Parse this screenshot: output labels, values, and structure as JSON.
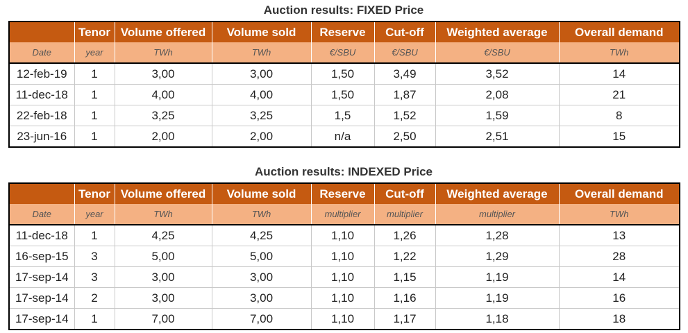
{
  "fixed": {
    "title": "Auction results: FIXED Price",
    "headers": [
      "",
      "Tenor",
      "Volume offered",
      "Volume sold",
      "Reserve",
      "Cut-off",
      "Weighted average",
      "Overall demand"
    ],
    "units": [
      "Date",
      "year",
      "TWh",
      "TWh",
      "€/SBU",
      "€/SBU",
      "€/SBU",
      "TWh"
    ],
    "rows": [
      [
        "12-feb-19",
        "1",
        "3,00",
        "3,00",
        "1,50",
        "3,49",
        "3,52",
        "14"
      ],
      [
        "11-dec-18",
        "1",
        "4,00",
        "4,00",
        "1,50",
        "1,87",
        "2,08",
        "21"
      ],
      [
        "22-feb-18",
        "1",
        "3,25",
        "3,25",
        "1,5",
        "1,52",
        "1,59",
        "8"
      ],
      [
        "23-jun-16",
        "1",
        "2,00",
        "2,00",
        "n/a",
        "2,50",
        "2,51",
        "15"
      ]
    ]
  },
  "indexed": {
    "title": "Auction results: INDEXED Price",
    "headers": [
      "",
      "Tenor",
      "Volume offered",
      "Volume sold",
      "Reserve",
      "Cut-off",
      "Weighted average",
      "Overall demand"
    ],
    "units": [
      "Date",
      "year",
      "TWh",
      "TWh",
      "multiplier",
      "multiplier",
      "multiplier",
      "TWh"
    ],
    "rows": [
      [
        "11-dec-18",
        "1",
        "4,25",
        "4,25",
        "1,10",
        "1,26",
        "1,28",
        "13"
      ],
      [
        "16-sep-15",
        "3",
        "5,00",
        "5,00",
        "1,10",
        "1,22",
        "1,29",
        "28"
      ],
      [
        "17-sep-14",
        "3",
        "3,00",
        "3,00",
        "1,10",
        "1,15",
        "1,19",
        "14"
      ],
      [
        "17-sep-14",
        "2",
        "3,00",
        "3,00",
        "1,10",
        "1,16",
        "1,19",
        "16"
      ],
      [
        "17-sep-14",
        "1",
        "7,00",
        "7,00",
        "1,10",
        "1,17",
        "1,18",
        "18"
      ]
    ]
  },
  "colors": {
    "header_bg": "#c55a11",
    "units_bg": "#f4b183"
  }
}
